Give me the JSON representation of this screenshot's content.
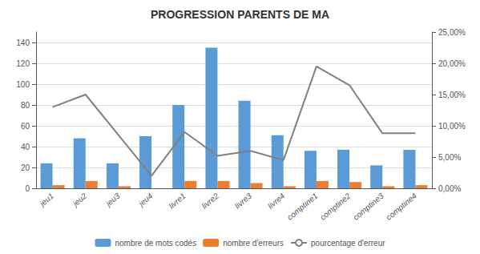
{
  "chart_data": {
    "type": "bar",
    "title": "PROGRESSION PARENTS DE MA",
    "categories": [
      "jeu1",
      "jeu2",
      "jeu3",
      "jeu4",
      "livre1",
      "livre2",
      "livre3",
      "livre4",
      "comptine1",
      "comptine2",
      "comptine3",
      "comptine4"
    ],
    "series": [
      {
        "name": "nombre de mots codés",
        "color": "#5B9BD5",
        "values": [
          24,
          48,
          24,
          50,
          80,
          135,
          84,
          51,
          36,
          37,
          22,
          37
        ]
      },
      {
        "name": "nombre d'erreurs",
        "color": "#ED7D31",
        "values": [
          3,
          7,
          2,
          0,
          7,
          7,
          5,
          2,
          7,
          6,
          2,
          3
        ]
      },
      {
        "name": "pourcentage d'erreur",
        "color": "#808080",
        "type": "line",
        "axis": "y2",
        "values": [
          0.13,
          0.15,
          0.085,
          0.02,
          0.09,
          0.052,
          0.06,
          0.045,
          0.195,
          0.165,
          0.088,
          0.088
        ]
      }
    ],
    "ylim": [
      0,
      150
    ],
    "yticks": [
      0,
      20,
      40,
      60,
      80,
      100,
      120,
      140
    ],
    "y2lim": [
      0.0,
      0.25
    ],
    "y2ticks": [
      {
        "value": 0.0,
        "label": "0,00%"
      },
      {
        "value": 0.05,
        "label": "5,00%"
      },
      {
        "value": 0.1,
        "label": "10,00%"
      },
      {
        "value": 0.15,
        "label": "15,00%"
      },
      {
        "value": 0.2,
        "label": "20,00%"
      },
      {
        "value": 0.25,
        "label": "25,00%"
      }
    ],
    "grid": true,
    "legend": "bottom"
  }
}
